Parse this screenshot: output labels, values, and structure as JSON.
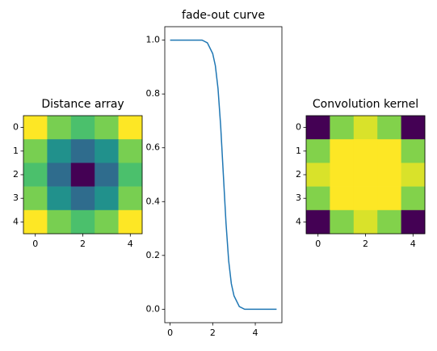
{
  "chart_data": [
    {
      "type": "heatmap",
      "title": "Distance array",
      "values": [
        [
          2.83,
          2.24,
          2,
          2.24,
          2.83
        ],
        [
          2.24,
          1.41,
          1,
          1.41,
          2.24
        ],
        [
          2,
          1,
          0,
          1,
          2
        ],
        [
          2.24,
          1.41,
          1,
          1.41,
          2.24
        ],
        [
          2.83,
          2.24,
          2,
          2.24,
          2.83
        ]
      ],
      "colormap": [
        "#440154",
        "#472c7a",
        "#3b528b",
        "#2c728e",
        "#21918c",
        "#28ae80",
        "#5ec962",
        "#addc30",
        "#fde725"
      ],
      "xlim": [
        -0.5,
        4.5
      ],
      "ylim": [
        4.5,
        -0.5
      ],
      "xticks": [
        0,
        2,
        4
      ],
      "yticks": [
        0,
        1,
        2,
        3,
        4
      ]
    },
    {
      "type": "line",
      "title": "fade-out curve",
      "x": [
        0,
        0.25,
        0.5,
        0.75,
        1,
        1.25,
        1.5,
        1.75,
        2,
        2.125,
        2.25,
        2.375,
        2.5,
        2.625,
        2.75,
        2.875,
        3,
        3.25,
        3.5,
        3.75,
        4,
        4.25,
        4.5,
        4.75,
        5
      ],
      "values": [
        1.0,
        1.0,
        1.0,
        1.0,
        1.0,
        1.0,
        1.0,
        0.99,
        0.95,
        0.905,
        0.82,
        0.68,
        0.5,
        0.32,
        0.18,
        0.095,
        0.05,
        0.01,
        0.0,
        0.0,
        0.0,
        0.0,
        0.0,
        0.0,
        0.0
      ],
      "color": "#1f77b4",
      "xlim": [
        -0.25,
        5.25
      ],
      "ylim": [
        -0.05,
        1.05
      ],
      "xticks": [
        0,
        2,
        4
      ],
      "yticks": [
        {
          "value": 0,
          "label": "0.0"
        },
        {
          "value": 0.2,
          "label": "0.2"
        },
        {
          "value": 0.4,
          "label": "0.4"
        },
        {
          "value": 0.6,
          "label": "0.6"
        },
        {
          "value": 0.8,
          "label": "0.8"
        },
        {
          "value": 1,
          "label": "1.0"
        }
      ]
    },
    {
      "type": "heatmap",
      "title": "Convolution kernel",
      "values": [
        [
          0.12,
          0.83,
          0.95,
          0.83,
          0.12
        ],
        [
          0.83,
          1.0,
          1.0,
          1.0,
          0.83
        ],
        [
          0.95,
          1.0,
          1.0,
          1.0,
          0.95
        ],
        [
          0.83,
          1.0,
          1.0,
          1.0,
          0.83
        ],
        [
          0.12,
          0.83,
          0.95,
          0.83,
          0.12
        ]
      ],
      "colormap": [
        "#440154",
        "#472c7a",
        "#3b528b",
        "#2c728e",
        "#21918c",
        "#28ae80",
        "#5ec962",
        "#addc30",
        "#fde725"
      ],
      "xlim": [
        -0.5,
        4.5
      ],
      "ylim": [
        4.5,
        -0.5
      ],
      "xticks": [
        0,
        2,
        4
      ],
      "yticks": [
        0,
        1,
        2,
        3,
        4
      ]
    }
  ]
}
